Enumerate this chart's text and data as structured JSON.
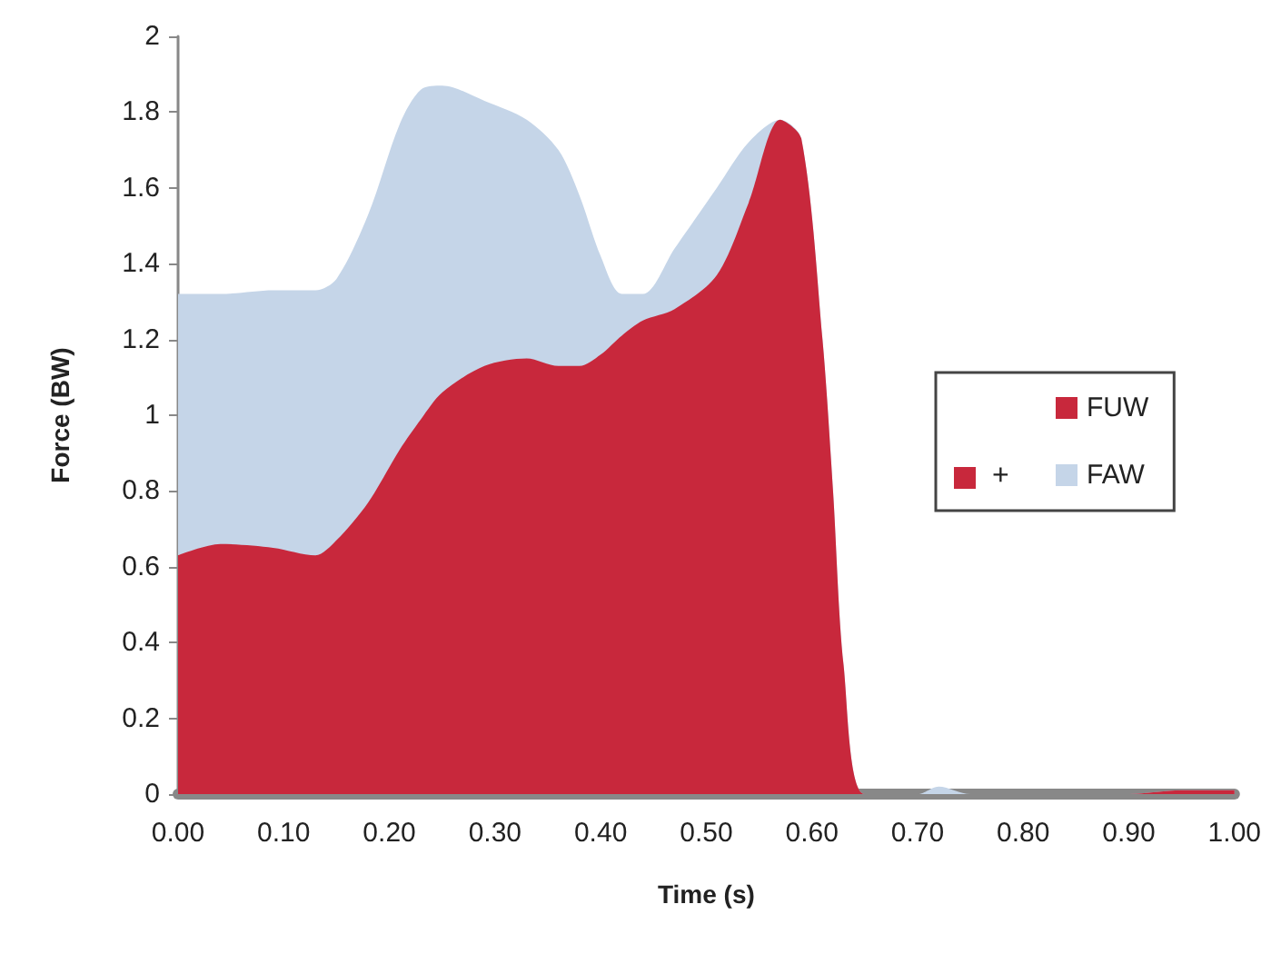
{
  "chart_data": {
    "type": "area",
    "stacked": true,
    "xlabel": "Time (s)",
    "ylabel": "Force (BW)",
    "x": [
      0,
      0.04,
      0.09,
      0.13,
      0.15,
      0.18,
      0.21,
      0.23,
      0.25,
      0.29,
      0.33,
      0.36,
      0.38,
      0.4,
      0.42,
      0.44,
      0.47,
      0.51,
      0.54,
      0.57,
      0.59,
      0.61,
      0.62,
      0.63,
      0.65,
      0.7,
      0.72,
      0.75,
      0.8,
      0.9,
      0.95,
      1
    ],
    "series": [
      {
        "name": "FUW",
        "color": "#c8283c",
        "values": [
          0.63,
          0.66,
          0.65,
          0.63,
          0.67,
          0.77,
          0.91,
          0.99,
          1.06,
          1.13,
          1.15,
          1.13,
          1.13,
          1.16,
          1.21,
          1.25,
          1.28,
          1.37,
          1.56,
          1.78,
          1.73,
          1.2,
          0.8,
          0.34,
          0,
          0,
          0,
          0,
          0,
          0,
          0.01,
          0.01
        ]
      },
      {
        "name": "FAW",
        "color": "#c5d5e8",
        "values": [
          0.69,
          0.66,
          0.68,
          0.7,
          0.69,
          0.76,
          0.86,
          0.87,
          0.81,
          0.7,
          0.63,
          0.57,
          0.45,
          0.26,
          0.11,
          0.07,
          0.16,
          0.23,
          0.16,
          0,
          0,
          0,
          0,
          0,
          0,
          0,
          0.02,
          0,
          0,
          0,
          0,
          0
        ]
      }
    ],
    "annotations": [
      "+"
    ],
    "xlim": [
      0,
      1
    ],
    "xticks": [
      {
        "value": 0,
        "label": "0.00"
      },
      {
        "value": 0.1,
        "label": "0.10"
      },
      {
        "value": 0.2,
        "label": "0.20"
      },
      {
        "value": 0.3,
        "label": "0.30"
      },
      {
        "value": 0.4,
        "label": "0.40"
      },
      {
        "value": 0.5,
        "label": "0.50"
      },
      {
        "value": 0.6,
        "label": "0.60"
      },
      {
        "value": 0.7,
        "label": "0.70"
      },
      {
        "value": 0.8,
        "label": "0.80"
      },
      {
        "value": 0.9,
        "label": "0.90"
      },
      {
        "value": 1,
        "label": "1.00"
      }
    ],
    "ylim": [
      0,
      2
    ],
    "yticks": [
      0,
      0.2,
      0.4,
      0.6,
      0.8,
      1,
      1.2,
      1.4,
      1.6,
      1.8,
      2
    ],
    "grid": false,
    "legend": "right",
    "marker": "none"
  }
}
